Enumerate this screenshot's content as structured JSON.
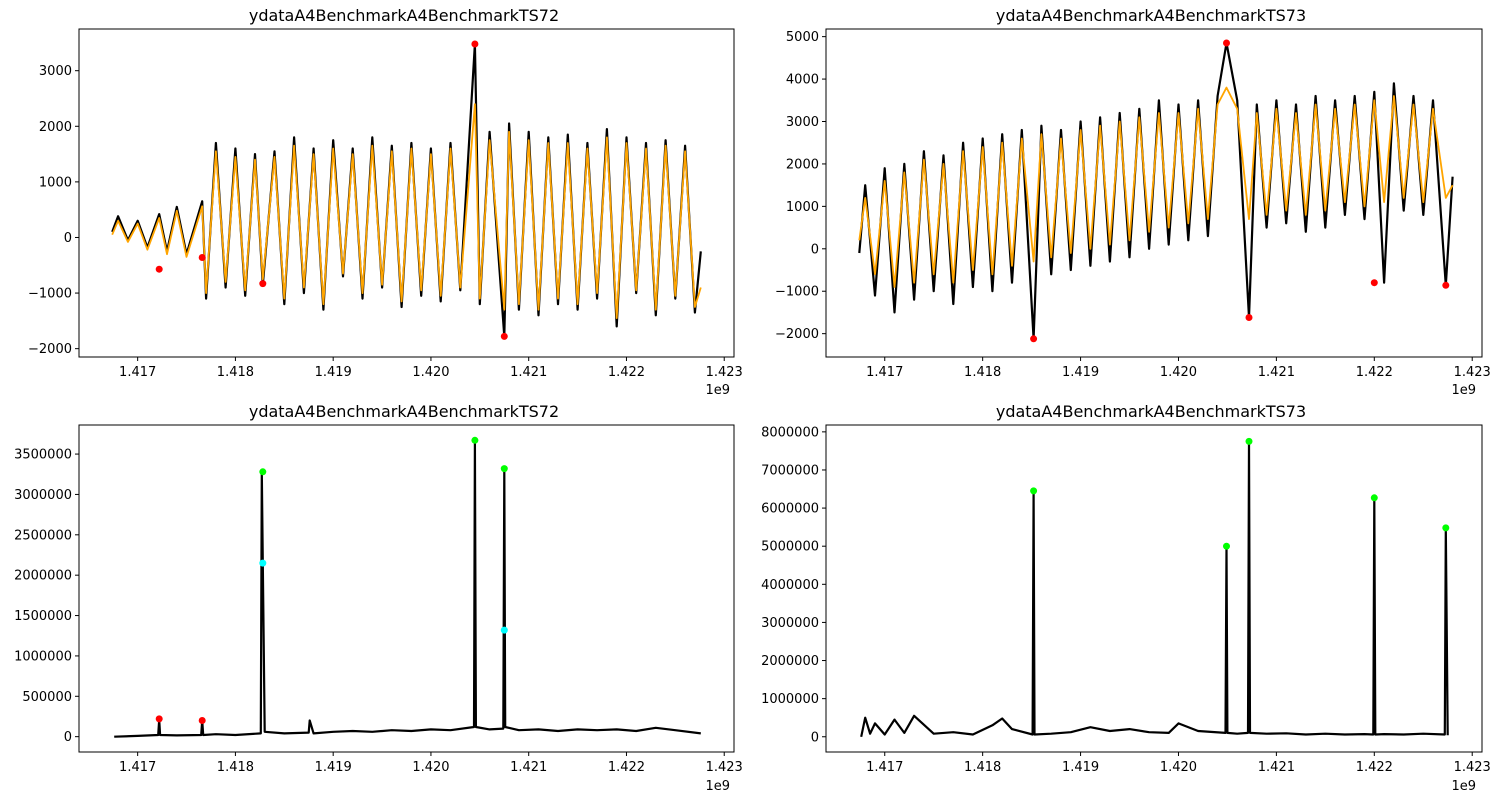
{
  "chart_data": [
    {
      "type": "line",
      "title": "ydataA4BenchmarkA4BenchmarkTS72",
      "x_offset_label": "1e9",
      "xlim": [
        1.4164,
        1.4231
      ],
      "ylim": [
        -2150,
        3750
      ],
      "x_ticks": [
        1.417,
        1.418,
        1.419,
        1.42,
        1.421,
        1.422,
        1.423
      ],
      "x_tick_labels": [
        "1.417",
        "1.418",
        "1.419",
        "1.420",
        "1.421",
        "1.422",
        "1.423"
      ],
      "y_ticks": [
        -2000,
        -1000,
        0,
        1000,
        2000,
        3000
      ],
      "y_tick_labels": [
        "−2000",
        "−1000",
        "0",
        "1000",
        "2000",
        "3000"
      ],
      "series": [
        {
          "color": "#000000",
          "x": [
            1.41674,
            1.4168,
            1.4169,
            1.417,
            1.4171,
            1.41722,
            1.4173,
            1.4174,
            1.4175,
            1.41766,
            1.4177,
            1.4178,
            1.4179,
            1.418,
            1.4181,
            1.4182,
            1.41828,
            1.4184,
            1.4185,
            1.4186,
            1.4187,
            1.4188,
            1.4189,
            1.419,
            1.4191,
            1.4192,
            1.4193,
            1.4194,
            1.4195,
            1.4196,
            1.4197,
            1.4198,
            1.4199,
            1.42,
            1.4201,
            1.4202,
            1.4203,
            1.42045,
            1.4205,
            1.4206,
            1.42075,
            1.4208,
            1.4209,
            1.421,
            1.4211,
            1.4212,
            1.4213,
            1.4214,
            1.4215,
            1.4216,
            1.4217,
            1.4218,
            1.4219,
            1.422,
            1.4221,
            1.4222,
            1.4223,
            1.4224,
            1.4225,
            1.4226,
            1.4227,
            1.42276
          ],
          "y": [
            100,
            380,
            -50,
            300,
            -180,
            420,
            -250,
            550,
            -300,
            650,
            -1100,
            1700,
            -900,
            1600,
            -1050,
            1500,
            -850,
            1550,
            -1200,
            1800,
            -1000,
            1600,
            -1300,
            1750,
            -700,
            1600,
            -1100,
            1800,
            -900,
            1650,
            -1250,
            1700,
            -1050,
            1600,
            -1150,
            1700,
            -950,
            3480,
            -1200,
            1900,
            -1780,
            2050,
            -1300,
            1900,
            -1400,
            1800,
            -1200,
            1850,
            -1300,
            1700,
            -1100,
            1950,
            -1600,
            1800,
            -1000,
            1700,
            -1400,
            1750,
            -1100,
            1650,
            -1350,
            -250
          ]
        },
        {
          "color": "#ffa500",
          "x": [
            1.41674,
            1.4168,
            1.4169,
            1.417,
            1.4171,
            1.41722,
            1.4173,
            1.4174,
            1.4175,
            1.41766,
            1.4177,
            1.4178,
            1.4179,
            1.418,
            1.4181,
            1.4182,
            1.41828,
            1.4184,
            1.4185,
            1.4186,
            1.4187,
            1.4188,
            1.4189,
            1.419,
            1.4191,
            1.4192,
            1.4193,
            1.4194,
            1.4195,
            1.4196,
            1.4197,
            1.4198,
            1.4199,
            1.42,
            1.4201,
            1.4202,
            1.4203,
            1.42045,
            1.4205,
            1.4206,
            1.42075,
            1.4208,
            1.4209,
            1.421,
            1.4211,
            1.4212,
            1.4213,
            1.4214,
            1.4215,
            1.4216,
            1.4217,
            1.4218,
            1.4219,
            1.422,
            1.4221,
            1.4222,
            1.4223,
            1.4224,
            1.4225,
            1.4226,
            1.4227,
            1.42276
          ],
          "y": [
            50,
            300,
            -80,
            250,
            -220,
            350,
            -300,
            480,
            -350,
            560,
            -1000,
            1550,
            -800,
            1450,
            -950,
            1400,
            -750,
            1450,
            -1100,
            1650,
            -900,
            1500,
            -1200,
            1600,
            -650,
            1500,
            -1000,
            1650,
            -850,
            1550,
            -1150,
            1600,
            -950,
            1500,
            -1050,
            1600,
            -900,
            2400,
            -1100,
            1750,
            -1300,
            1900,
            -1200,
            1750,
            -1300,
            1700,
            -1100,
            1700,
            -1200,
            1600,
            -1000,
            1800,
            -1450,
            1700,
            -950,
            1600,
            -1300,
            1650,
            -1050,
            1550,
            -1250,
            -900
          ]
        }
      ],
      "markers": [
        {
          "x": 1.41722,
          "y": -570,
          "color": "#ff0000"
        },
        {
          "x": 1.41766,
          "y": -360,
          "color": "#ff0000"
        },
        {
          "x": 1.41828,
          "y": -830,
          "color": "#ff0000"
        },
        {
          "x": 1.42045,
          "y": 3480,
          "color": "#ff0000"
        },
        {
          "x": 1.42075,
          "y": -1780,
          "color": "#ff0000"
        }
      ]
    },
    {
      "type": "line",
      "title": "ydataA4BenchmarkA4BenchmarkTS73",
      "x_offset_label": "1e9",
      "xlim": [
        1.4164,
        1.4231
      ],
      "ylim": [
        -2550,
        5180
      ],
      "x_ticks": [
        1.417,
        1.418,
        1.419,
        1.42,
        1.421,
        1.422,
        1.423
      ],
      "x_tick_labels": [
        "1.417",
        "1.418",
        "1.419",
        "1.420",
        "1.421",
        "1.422",
        "1.423"
      ],
      "y_ticks": [
        -2000,
        -1000,
        0,
        1000,
        2000,
        3000,
        4000,
        5000
      ],
      "y_tick_labels": [
        "−2000",
        "−1000",
        "0",
        "1000",
        "2000",
        "3000",
        "4000",
        "5000"
      ],
      "series": [
        {
          "color": "#000000",
          "x": [
            1.41674,
            1.4168,
            1.4169,
            1.417,
            1.4171,
            1.4172,
            1.4173,
            1.4174,
            1.4175,
            1.4176,
            1.4177,
            1.4178,
            1.4179,
            1.418,
            1.4181,
            1.4182,
            1.4183,
            1.4184,
            1.41852,
            1.4186,
            1.4187,
            1.4188,
            1.4189,
            1.419,
            1.4191,
            1.4192,
            1.4193,
            1.4194,
            1.4195,
            1.4196,
            1.4197,
            1.4198,
            1.4199,
            1.42,
            1.4201,
            1.4202,
            1.4203,
            1.4204,
            1.42049,
            1.4206,
            1.42072,
            1.4208,
            1.4209,
            1.421,
            1.4211,
            1.4212,
            1.4213,
            1.4214,
            1.4215,
            1.4216,
            1.4217,
            1.4218,
            1.4219,
            1.422,
            1.4221,
            1.4222,
            1.4223,
            1.4224,
            1.4225,
            1.4226,
            1.42273,
            1.4228
          ],
          "y": [
            -100,
            1500,
            -1100,
            1900,
            -1500,
            2000,
            -1200,
            2300,
            -1000,
            2200,
            -1300,
            2500,
            -900,
            2600,
            -1000,
            2700,
            -800,
            2800,
            -2120,
            2900,
            -600,
            2800,
            -500,
            3000,
            -400,
            3100,
            -300,
            3200,
            -200,
            3300,
            0,
            3500,
            100,
            3400,
            200,
            3500,
            300,
            3600,
            4850,
            3500,
            -1620,
            3400,
            500,
            3500,
            600,
            3400,
            400,
            3600,
            500,
            3500,
            800,
            3600,
            700,
            3700,
            -800,
            3900,
            900,
            3600,
            800,
            3500,
            -860,
            1700
          ]
        },
        {
          "color": "#ffa500",
          "x": [
            1.41674,
            1.4168,
            1.4169,
            1.417,
            1.4171,
            1.4172,
            1.4173,
            1.4174,
            1.4175,
            1.4176,
            1.4177,
            1.4178,
            1.4179,
            1.418,
            1.4181,
            1.4182,
            1.4183,
            1.4184,
            1.41852,
            1.4186,
            1.4187,
            1.4188,
            1.4189,
            1.419,
            1.4191,
            1.4192,
            1.4193,
            1.4194,
            1.4195,
            1.4196,
            1.4197,
            1.4198,
            1.4199,
            1.42,
            1.4201,
            1.4202,
            1.4203,
            1.4204,
            1.42049,
            1.4206,
            1.42072,
            1.4208,
            1.4209,
            1.421,
            1.4211,
            1.4212,
            1.4213,
            1.4214,
            1.4215,
            1.4216,
            1.4217,
            1.4218,
            1.4219,
            1.422,
            1.4221,
            1.4222,
            1.4223,
            1.4224,
            1.4225,
            1.4226,
            1.42273,
            1.4228
          ],
          "y": [
            200,
            1200,
            -600,
            1600,
            -900,
            1800,
            -800,
            2100,
            -600,
            2000,
            -800,
            2300,
            -500,
            2400,
            -600,
            2500,
            -400,
            2600,
            -300,
            2700,
            -200,
            2600,
            -100,
            2800,
            0,
            2900,
            100,
            3000,
            200,
            3100,
            400,
            3200,
            500,
            3200,
            600,
            3300,
            700,
            3400,
            3800,
            3300,
            700,
            3200,
            800,
            3300,
            900,
            3200,
            800,
            3400,
            900,
            3300,
            1100,
            3400,
            1000,
            3500,
            1100,
            3600,
            1200,
            3400,
            1100,
            3300,
            1200,
            1500
          ]
        }
      ],
      "markers": [
        {
          "x": 1.41852,
          "y": -2120,
          "color": "#ff0000"
        },
        {
          "x": 1.42049,
          "y": 4850,
          "color": "#ff0000"
        },
        {
          "x": 1.42072,
          "y": -1620,
          "color": "#ff0000"
        },
        {
          "x": 1.422,
          "y": -800,
          "color": "#ff0000"
        },
        {
          "x": 1.42273,
          "y": -860,
          "color": "#ff0000"
        }
      ]
    },
    {
      "type": "line",
      "title": "ydataA4BenchmarkA4BenchmarkTS72",
      "x_offset_label": "1e9",
      "xlim": [
        1.4164,
        1.4231
      ],
      "ylim": [
        -190000,
        3860000
      ],
      "x_ticks": [
        1.417,
        1.418,
        1.419,
        1.42,
        1.421,
        1.422,
        1.423
      ],
      "x_tick_labels": [
        "1.417",
        "1.418",
        "1.419",
        "1.420",
        "1.421",
        "1.422",
        "1.423"
      ],
      "y_ticks": [
        0,
        500000,
        1000000,
        1500000,
        2000000,
        2500000,
        3000000,
        3500000
      ],
      "y_tick_labels": [
        "0",
        "500000",
        "1000000",
        "1500000",
        "2000000",
        "2500000",
        "3000000",
        "3500000"
      ],
      "series": [
        {
          "color": "#000000",
          "x": [
            1.41676,
            1.417,
            1.41721,
            1.41722,
            1.41723,
            1.4174,
            1.41765,
            1.41766,
            1.41767,
            1.4178,
            1.418,
            1.41826,
            1.41827,
            1.41828,
            1.4183,
            1.4185,
            1.41875,
            1.41876,
            1.4188,
            1.419,
            1.4192,
            1.4194,
            1.4196,
            1.4198,
            1.42,
            1.4202,
            1.42044,
            1.42045,
            1.42046,
            1.4206,
            1.42074,
            1.42075,
            1.42076,
            1.4209,
            1.4211,
            1.4213,
            1.4215,
            1.4217,
            1.4219,
            1.4221,
            1.4223,
            1.4225,
            1.42276
          ],
          "y": [
            0,
            10000,
            20000,
            210000,
            20000,
            15000,
            20000,
            200000,
            20000,
            30000,
            20000,
            40000,
            3280000,
            2150000,
            60000,
            40000,
            50000,
            200000,
            40000,
            60000,
            70000,
            60000,
            80000,
            70000,
            90000,
            80000,
            120000,
            3670000,
            120000,
            90000,
            100000,
            3320000,
            120000,
            80000,
            90000,
            70000,
            90000,
            80000,
            90000,
            70000,
            110000,
            80000,
            40000
          ]
        }
      ],
      "markers": [
        {
          "x": 1.41722,
          "y": 220000,
          "color": "#ff0000"
        },
        {
          "x": 1.41766,
          "y": 200000,
          "color": "#ff0000"
        },
        {
          "x": 1.41828,
          "y": 3280000,
          "color": "#00ff00"
        },
        {
          "x": 1.41828,
          "y": 2150000,
          "color": "#00ffff"
        },
        {
          "x": 1.42045,
          "y": 3670000,
          "color": "#00ff00"
        },
        {
          "x": 1.42075,
          "y": 3320000,
          "color": "#00ff00"
        },
        {
          "x": 1.42075,
          "y": 1320000,
          "color": "#00ffff"
        }
      ]
    },
    {
      "type": "line",
      "title": "ydataA4BenchmarkA4BenchmarkTS73",
      "x_offset_label": "1e9",
      "xlim": [
        1.4164,
        1.4231
      ],
      "ylim": [
        -400000,
        8180000
      ],
      "x_ticks": [
        1.417,
        1.418,
        1.419,
        1.42,
        1.421,
        1.422,
        1.423
      ],
      "x_tick_labels": [
        "1.417",
        "1.418",
        "1.419",
        "1.420",
        "1.421",
        "1.422",
        "1.423"
      ],
      "y_ticks": [
        0,
        1000000,
        2000000,
        3000000,
        4000000,
        5000000,
        6000000,
        7000000,
        8000000
      ],
      "y_tick_labels": [
        "0",
        "1000000",
        "2000000",
        "3000000",
        "4000000",
        "5000000",
        "6000000",
        "7000000",
        "8000000"
      ],
      "series": [
        {
          "color": "#000000",
          "x": [
            1.41676,
            1.4168,
            1.41685,
            1.4169,
            1.417,
            1.4171,
            1.4172,
            1.4173,
            1.4175,
            1.4177,
            1.4179,
            1.4181,
            1.4182,
            1.4183,
            1.41851,
            1.41852,
            1.41853,
            1.4187,
            1.4189,
            1.4191,
            1.4193,
            1.4195,
            1.4197,
            1.4199,
            1.42,
            1.4202,
            1.42048,
            1.42049,
            1.4205,
            1.4206,
            1.42071,
            1.42072,
            1.42073,
            1.4209,
            1.4211,
            1.4213,
            1.4215,
            1.4217,
            1.4219,
            1.42199,
            1.422,
            1.42201,
            1.4221,
            1.4223,
            1.4225,
            1.42272,
            1.42273,
            1.42275
          ],
          "y": [
            0,
            500000,
            80000,
            350000,
            60000,
            450000,
            100000,
            550000,
            80000,
            120000,
            60000,
            300000,
            480000,
            200000,
            60000,
            6450000,
            60000,
            80000,
            120000,
            250000,
            150000,
            200000,
            120000,
            100000,
            350000,
            150000,
            100000,
            5000000,
            100000,
            80000,
            100000,
            7750000,
            100000,
            80000,
            90000,
            60000,
            80000,
            60000,
            70000,
            60000,
            6270000,
            60000,
            70000,
            60000,
            80000,
            60000,
            5480000,
            40000
          ]
        }
      ],
      "markers": [
        {
          "x": 1.41852,
          "y": 6450000,
          "color": "#00ff00"
        },
        {
          "x": 1.42049,
          "y": 5000000,
          "color": "#00ff00"
        },
        {
          "x": 1.42072,
          "y": 7750000,
          "color": "#00ff00"
        },
        {
          "x": 1.422,
          "y": 6270000,
          "color": "#00ff00"
        },
        {
          "x": 1.42273,
          "y": 5480000,
          "color": "#00ff00"
        }
      ]
    }
  ]
}
